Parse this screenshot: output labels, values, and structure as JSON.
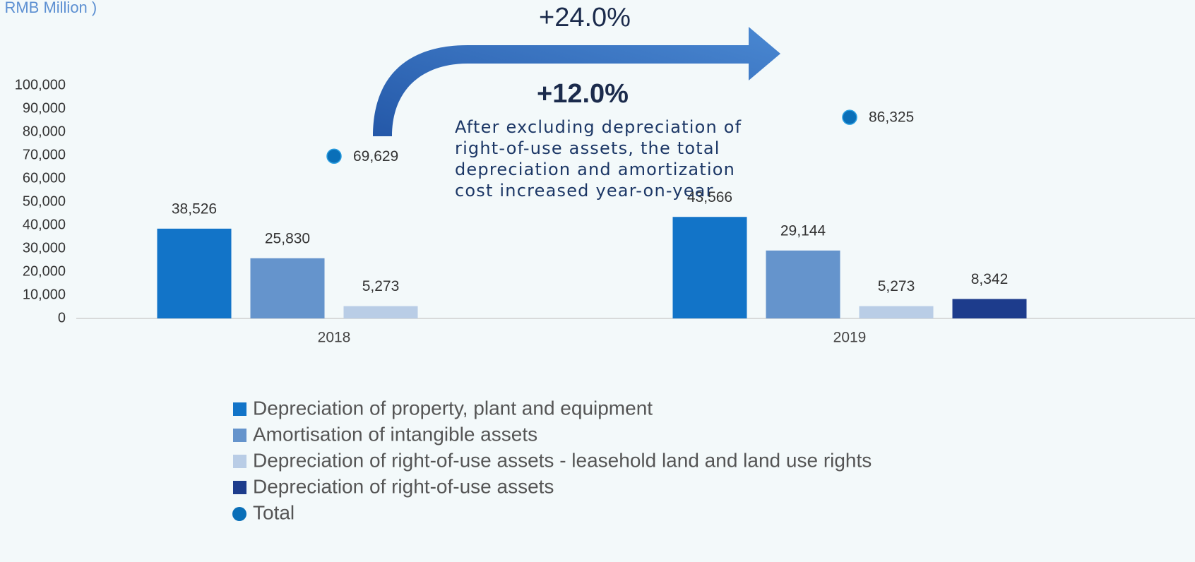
{
  "chart_data": {
    "type": "bar",
    "unit_label": "( RMB Million )",
    "categories": [
      "2018",
      "2019"
    ],
    "series": [
      {
        "name": "Depreciation of property, plant and equipment",
        "color": "#1274c8",
        "values": [
          38526,
          43566
        ],
        "value_labels": [
          "38,526",
          "43,566"
        ]
      },
      {
        "name": "Amortisation of intangible assets",
        "color": "#6594cc",
        "values": [
          25830,
          29144
        ],
        "value_labels": [
          "25,830",
          "29,144"
        ]
      },
      {
        "name": "Depreciation of right-of-use assets - leasehold land and land use rights",
        "color": "#b9cde6",
        "values": [
          5273,
          5273
        ],
        "value_labels": [
          "5,273",
          "5,273"
        ]
      },
      {
        "name": "Depreciation of right-of-use assets",
        "color": "#1d3c8c",
        "values": [
          null,
          8342
        ],
        "value_labels": [
          null,
          "8,342"
        ]
      },
      {
        "name": "Total",
        "type": "scatter",
        "color": "#0a6fb8",
        "values": [
          69629,
          86325
        ],
        "value_labels": [
          "69,629",
          "86,325"
        ]
      }
    ],
    "ylim": [
      0,
      100000
    ],
    "yticks": [
      0,
      {
        "value": 10000,
        "label": "10,000"
      },
      {
        "value": 20000,
        "label": "20,000"
      },
      {
        "value": 30000,
        "label": "30,000"
      },
      {
        "value": 40000,
        "label": "40,000"
      },
      {
        "value": 50000,
        "label": "50,000"
      },
      {
        "value": 60000,
        "label": "60,000"
      },
      {
        "value": 70000,
        "label": "70,000"
      },
      {
        "value": 80000,
        "label": "80,000"
      },
      {
        "value": 90000,
        "label": "90,000"
      },
      {
        "value": 100000,
        "label": "100,000"
      }
    ],
    "grid": false,
    "annotations": [
      "+24.0%",
      "+12.0%",
      "After excluding depreciation of right-of-use assets, the total depreciation and amortization cost increased year-on-year"
    ]
  }
}
